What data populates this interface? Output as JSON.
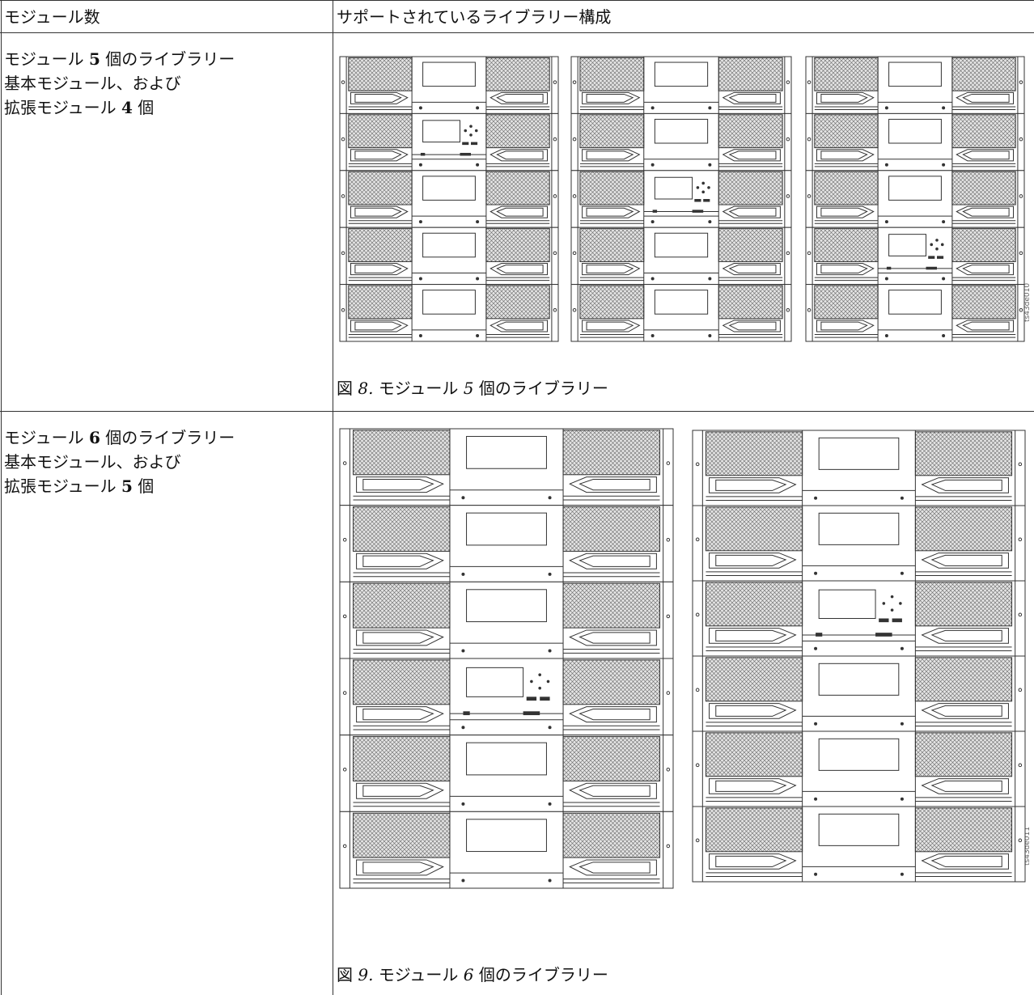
{
  "table": {
    "header": [
      "モジュール数",
      "サポートされているライブラリー構成"
    ],
    "rows": [
      {
        "modules": {
          "before": "モジュール",
          "count": "5",
          "after": "個のライブラリー"
        },
        "base": "基本モジュール、および",
        "expansion": {
          "before": "拡張モジュール",
          "count": "4",
          "after": "個"
        },
        "figure": {
          "label": "図",
          "number": "8.",
          "before": "モジュール",
          "count": "5",
          "after": "個のライブラリー",
          "image_id": "ts43de010"
        }
      },
      {
        "modules": {
          "before": "モジュール",
          "count": "6",
          "after": "個のライブラリー"
        },
        "base": "基本モジュール、および",
        "expansion": {
          "before": "拡張モジュール",
          "count": "5",
          "after": "個"
        },
        "figure": {
          "label": "図",
          "number": "9.",
          "before": "モジュール",
          "count": "6",
          "after": "個のライブラリー",
          "image_id": "ts43de011"
        }
      }
    ]
  }
}
